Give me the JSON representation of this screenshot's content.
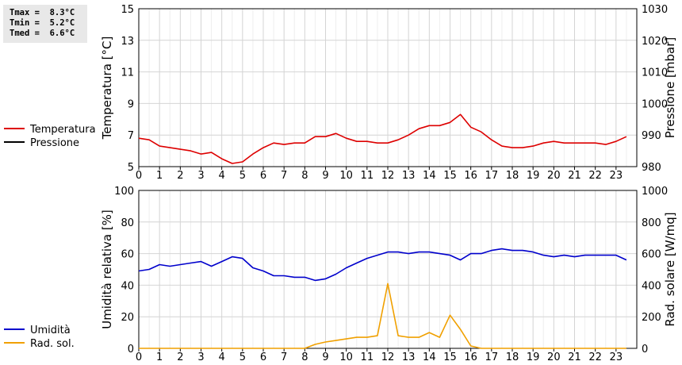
{
  "stats": {
    "tmax": "Tmax =  8.3°C",
    "tmin": "Tmin =  5.2°C",
    "tmed": "Tmed =  6.6°C"
  },
  "chart_data": [
    {
      "type": "line",
      "x_ticks": [
        "0",
        "1",
        "2",
        "3",
        "4",
        "5",
        "6",
        "7",
        "8",
        "9",
        "10",
        "11",
        "12",
        "13",
        "14",
        "15",
        "16",
        "17",
        "18",
        "19",
        "20",
        "21",
        "22",
        "23"
      ],
      "xlim": [
        0,
        24
      ],
      "ylabel": "Temperatura [°C]",
      "ylim": [
        5,
        15
      ],
      "y_ticks": [
        "5",
        "7",
        "9",
        "11",
        "13",
        "15"
      ],
      "ylabel_right": "Pressione [mbar]",
      "ylim_right": [
        980,
        1030
      ],
      "y_ticks_right": [
        "980",
        "990",
        "1000",
        "1010",
        "1020",
        "1030"
      ],
      "grid": true,
      "legend_position": "left",
      "series": [
        {
          "name": "Temperatura",
          "axis": "left",
          "color": "#dd0000",
          "x": [
            0,
            0.5,
            1,
            1.5,
            2,
            2.5,
            3,
            3.5,
            4,
            4.5,
            5,
            5.5,
            6,
            6.5,
            7,
            7.5,
            8,
            8.5,
            9,
            9.5,
            10,
            10.5,
            11,
            11.5,
            12,
            12.5,
            13,
            13.5,
            14,
            14.5,
            15,
            15.5,
            16,
            16.5,
            17,
            17.5,
            18,
            18.5,
            19,
            19.5,
            20,
            20.5,
            21,
            21.5,
            22,
            22.5,
            23,
            23.5
          ],
          "values": [
            6.8,
            6.7,
            6.3,
            6.2,
            6.1,
            6.0,
            5.8,
            5.9,
            5.5,
            5.2,
            5.3,
            5.8,
            6.2,
            6.5,
            6.4,
            6.5,
            6.5,
            6.9,
            6.9,
            7.1,
            6.8,
            6.6,
            6.6,
            6.5,
            6.5,
            6.7,
            7.0,
            7.4,
            7.6,
            7.6,
            7.8,
            8.3,
            7.5,
            7.2,
            6.7,
            6.3,
            6.2,
            6.2,
            6.3,
            6.5,
            6.6,
            6.5,
            6.5,
            6.5,
            6.5,
            6.4,
            6.6,
            6.9
          ]
        },
        {
          "name": "Pressione",
          "axis": "right",
          "color": "#000000",
          "x": [],
          "values": []
        }
      ]
    },
    {
      "type": "line",
      "x_ticks": [
        "0",
        "1",
        "2",
        "3",
        "4",
        "5",
        "6",
        "7",
        "8",
        "9",
        "10",
        "11",
        "12",
        "13",
        "14",
        "15",
        "16",
        "17",
        "18",
        "19",
        "20",
        "21",
        "22",
        "23"
      ],
      "xlim": [
        0,
        24
      ],
      "ylabel": "Umidità relativa [%]",
      "ylim": [
        0,
        100
      ],
      "y_ticks": [
        "0",
        "20",
        "40",
        "60",
        "80",
        "100"
      ],
      "ylabel_right": "Rad. solare [W/mq]",
      "ylim_right": [
        0,
        1000
      ],
      "y_ticks_right": [
        "0",
        "200",
        "400",
        "600",
        "800",
        "1000"
      ],
      "grid": true,
      "legend_position": "left",
      "series": [
        {
          "name": "Umidità",
          "axis": "left",
          "color": "#0000cc",
          "x": [
            0,
            0.5,
            1,
            1.5,
            2,
            2.5,
            3,
            3.5,
            4,
            4.5,
            5,
            5.5,
            6,
            6.5,
            7,
            7.5,
            8,
            8.5,
            9,
            9.5,
            10,
            10.5,
            11,
            11.5,
            12,
            12.5,
            13,
            13.5,
            14,
            14.5,
            15,
            15.5,
            16,
            16.5,
            17,
            17.5,
            18,
            18.5,
            19,
            19.5,
            20,
            20.5,
            21,
            21.5,
            22,
            22.5,
            23,
            23.5
          ],
          "values": [
            49,
            50,
            53,
            52,
            53,
            54,
            55,
            52,
            55,
            58,
            57,
            51,
            49,
            46,
            46,
            45,
            45,
            43,
            44,
            47,
            51,
            54,
            57,
            59,
            61,
            61,
            60,
            61,
            61,
            60,
            59,
            56,
            60,
            60,
            62,
            63,
            62,
            62,
            61,
            59,
            58,
            59,
            58,
            59,
            59,
            59,
            59,
            56
          ]
        },
        {
          "name": "Rad. sol.",
          "axis": "right",
          "color": "#f0a000",
          "x": [
            0,
            0.5,
            1,
            1.5,
            2,
            2.5,
            3,
            3.5,
            4,
            4.5,
            5,
            5.5,
            6,
            6.5,
            7,
            7.5,
            8,
            8.5,
            9,
            9.5,
            10,
            10.5,
            11,
            11.5,
            12,
            12.5,
            13,
            13.5,
            14,
            14.5,
            15,
            15.5,
            16,
            16.5,
            17,
            17.5,
            18,
            18.5,
            19,
            19.5,
            20,
            20.5,
            21,
            21.5,
            22,
            22.5,
            23,
            23.5
          ],
          "values": [
            0,
            0,
            0,
            0,
            0,
            0,
            0,
            0,
            0,
            0,
            0,
            0,
            0,
            0,
            0,
            0,
            0,
            25,
            40,
            50,
            60,
            70,
            70,
            80,
            410,
            80,
            70,
            70,
            100,
            70,
            210,
            120,
            15,
            0,
            0,
            0,
            0,
            0,
            0,
            0,
            0,
            0,
            0,
            0,
            0,
            0,
            0,
            0
          ]
        }
      ]
    }
  ]
}
